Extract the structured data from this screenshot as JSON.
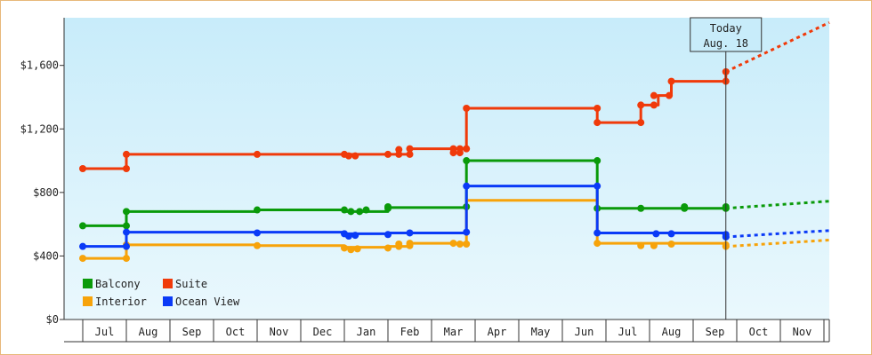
{
  "chart_data": {
    "type": "line",
    "y_ticks": [
      "$0",
      "$400",
      "$800",
      "$1,200",
      "$1,600"
    ],
    "y_tick_values": [
      0,
      400,
      800,
      1200,
      1600
    ],
    "ylim": [
      0,
      1900
    ],
    "months": [
      "Jul",
      "Aug",
      "Sep",
      "Oct",
      "Nov",
      "Dec",
      "Jan",
      "Feb",
      "Mar",
      "Apr",
      "May",
      "Jun",
      "Jul",
      "Aug",
      "Sep",
      "Oct",
      "Nov"
    ],
    "today_label": "Today",
    "today_date": "Aug. 18",
    "today_index": 14.25,
    "series": [
      {
        "name": "Balcony",
        "color": "#0a9a0a",
        "steps": [
          [
            -0.5,
            590
          ],
          [
            0.5,
            680
          ],
          [
            3.5,
            690
          ],
          [
            5.5,
            680
          ],
          [
            6.5,
            705
          ],
          [
            8.3,
            1000
          ],
          [
            11.3,
            700
          ],
          [
            14.25,
            700
          ]
        ],
        "markers": [
          [
            -0.5,
            590
          ],
          [
            0.5,
            590
          ],
          [
            0.5,
            680
          ],
          [
            3.5,
            690
          ],
          [
            5.5,
            690
          ],
          [
            5.65,
            680
          ],
          [
            5.85,
            680
          ],
          [
            6.0,
            690
          ],
          [
            6.5,
            700
          ],
          [
            6.5,
            710
          ],
          [
            8.3,
            710
          ],
          [
            8.3,
            1000
          ],
          [
            11.3,
            1000
          ],
          [
            11.3,
            700
          ],
          [
            12.3,
            700
          ],
          [
            13.3,
            700
          ],
          [
            13.3,
            710
          ],
          [
            14.25,
            710
          ],
          [
            14.25,
            700
          ]
        ],
        "forecast": [
          [
            14.25,
            700
          ],
          [
            17.5,
            745
          ]
        ]
      },
      {
        "name": "Suite",
        "color": "#f03a0a",
        "steps": [
          [
            -0.5,
            950
          ],
          [
            0.5,
            1040
          ],
          [
            5.5,
            1040
          ],
          [
            6.5,
            1040
          ],
          [
            7.0,
            1075
          ],
          [
            8.3,
            1330
          ],
          [
            11.3,
            1240
          ],
          [
            12.3,
            1350
          ],
          [
            12.7,
            1410
          ],
          [
            13.0,
            1500
          ],
          [
            14.25,
            1560
          ]
        ],
        "markers": [
          [
            -0.5,
            950
          ],
          [
            0.5,
            950
          ],
          [
            0.5,
            1040
          ],
          [
            3.5,
            1040
          ],
          [
            5.5,
            1040
          ],
          [
            5.6,
            1030
          ],
          [
            5.75,
            1030
          ],
          [
            6.5,
            1040
          ],
          [
            6.75,
            1040
          ],
          [
            6.75,
            1070
          ],
          [
            7.0,
            1040
          ],
          [
            7.0,
            1075
          ],
          [
            8.0,
            1075
          ],
          [
            8.0,
            1050
          ],
          [
            8.15,
            1050
          ],
          [
            8.15,
            1075
          ],
          [
            8.3,
            1075
          ],
          [
            8.3,
            1330
          ],
          [
            11.3,
            1330
          ],
          [
            11.3,
            1240
          ],
          [
            12.3,
            1240
          ],
          [
            12.3,
            1350
          ],
          [
            12.6,
            1350
          ],
          [
            12.6,
            1410
          ],
          [
            12.95,
            1410
          ],
          [
            13.0,
            1500
          ],
          [
            14.25,
            1500
          ],
          [
            14.25,
            1560
          ]
        ],
        "forecast": [
          [
            14.25,
            1560
          ],
          [
            17.5,
            1870
          ]
        ]
      },
      {
        "name": "Interior",
        "color": "#f7a30a",
        "steps": [
          [
            -0.5,
            385
          ],
          [
            0.5,
            470
          ],
          [
            3.5,
            465
          ],
          [
            5.5,
            455
          ],
          [
            6.5,
            460
          ],
          [
            7.0,
            480
          ],
          [
            8.3,
            750
          ],
          [
            11.3,
            480
          ],
          [
            14.25,
            470
          ]
        ],
        "markers": [
          [
            -0.5,
            385
          ],
          [
            0.5,
            385
          ],
          [
            0.5,
            470
          ],
          [
            3.5,
            465
          ],
          [
            5.5,
            450
          ],
          [
            5.65,
            440
          ],
          [
            5.8,
            445
          ],
          [
            6.5,
            450
          ],
          [
            6.75,
            460
          ],
          [
            6.75,
            475
          ],
          [
            7.0,
            465
          ],
          [
            7.0,
            480
          ],
          [
            8.0,
            480
          ],
          [
            8.15,
            475
          ],
          [
            8.3,
            475
          ],
          [
            11.3,
            480
          ],
          [
            12.3,
            465
          ],
          [
            12.6,
            465
          ],
          [
            13.0,
            475
          ],
          [
            14.25,
            470
          ],
          [
            14.25,
            460
          ]
        ],
        "forecast": [
          [
            14.25,
            460
          ],
          [
            17.5,
            500
          ]
        ]
      },
      {
        "name": "Ocean View",
        "color": "#0a3af7",
        "steps": [
          [
            -0.5,
            460
          ],
          [
            0.5,
            550
          ],
          [
            5.5,
            540
          ],
          [
            6.5,
            545
          ],
          [
            8.3,
            840
          ],
          [
            11.3,
            545
          ],
          [
            14.25,
            535
          ]
        ],
        "markers": [
          [
            -0.5,
            460
          ],
          [
            0.5,
            460
          ],
          [
            0.5,
            550
          ],
          [
            3.5,
            545
          ],
          [
            5.5,
            540
          ],
          [
            5.6,
            525
          ],
          [
            5.75,
            530
          ],
          [
            6.5,
            535
          ],
          [
            7.0,
            545
          ],
          [
            8.3,
            550
          ],
          [
            8.3,
            840
          ],
          [
            11.3,
            840
          ],
          [
            11.3,
            545
          ],
          [
            12.65,
            540
          ],
          [
            13.0,
            540
          ],
          [
            14.25,
            535
          ],
          [
            14.25,
            520
          ]
        ],
        "forecast": [
          [
            14.25,
            520
          ],
          [
            17.5,
            560
          ]
        ]
      }
    ],
    "legend": [
      {
        "name": "Balcony",
        "color": "#0a9a0a"
      },
      {
        "name": "Suite",
        "color": "#f03a0a"
      },
      {
        "name": "Interior",
        "color": "#f7a30a"
      },
      {
        "name": "Ocean View",
        "color": "#0a3af7"
      }
    ],
    "legend_position": "bottom-left"
  }
}
